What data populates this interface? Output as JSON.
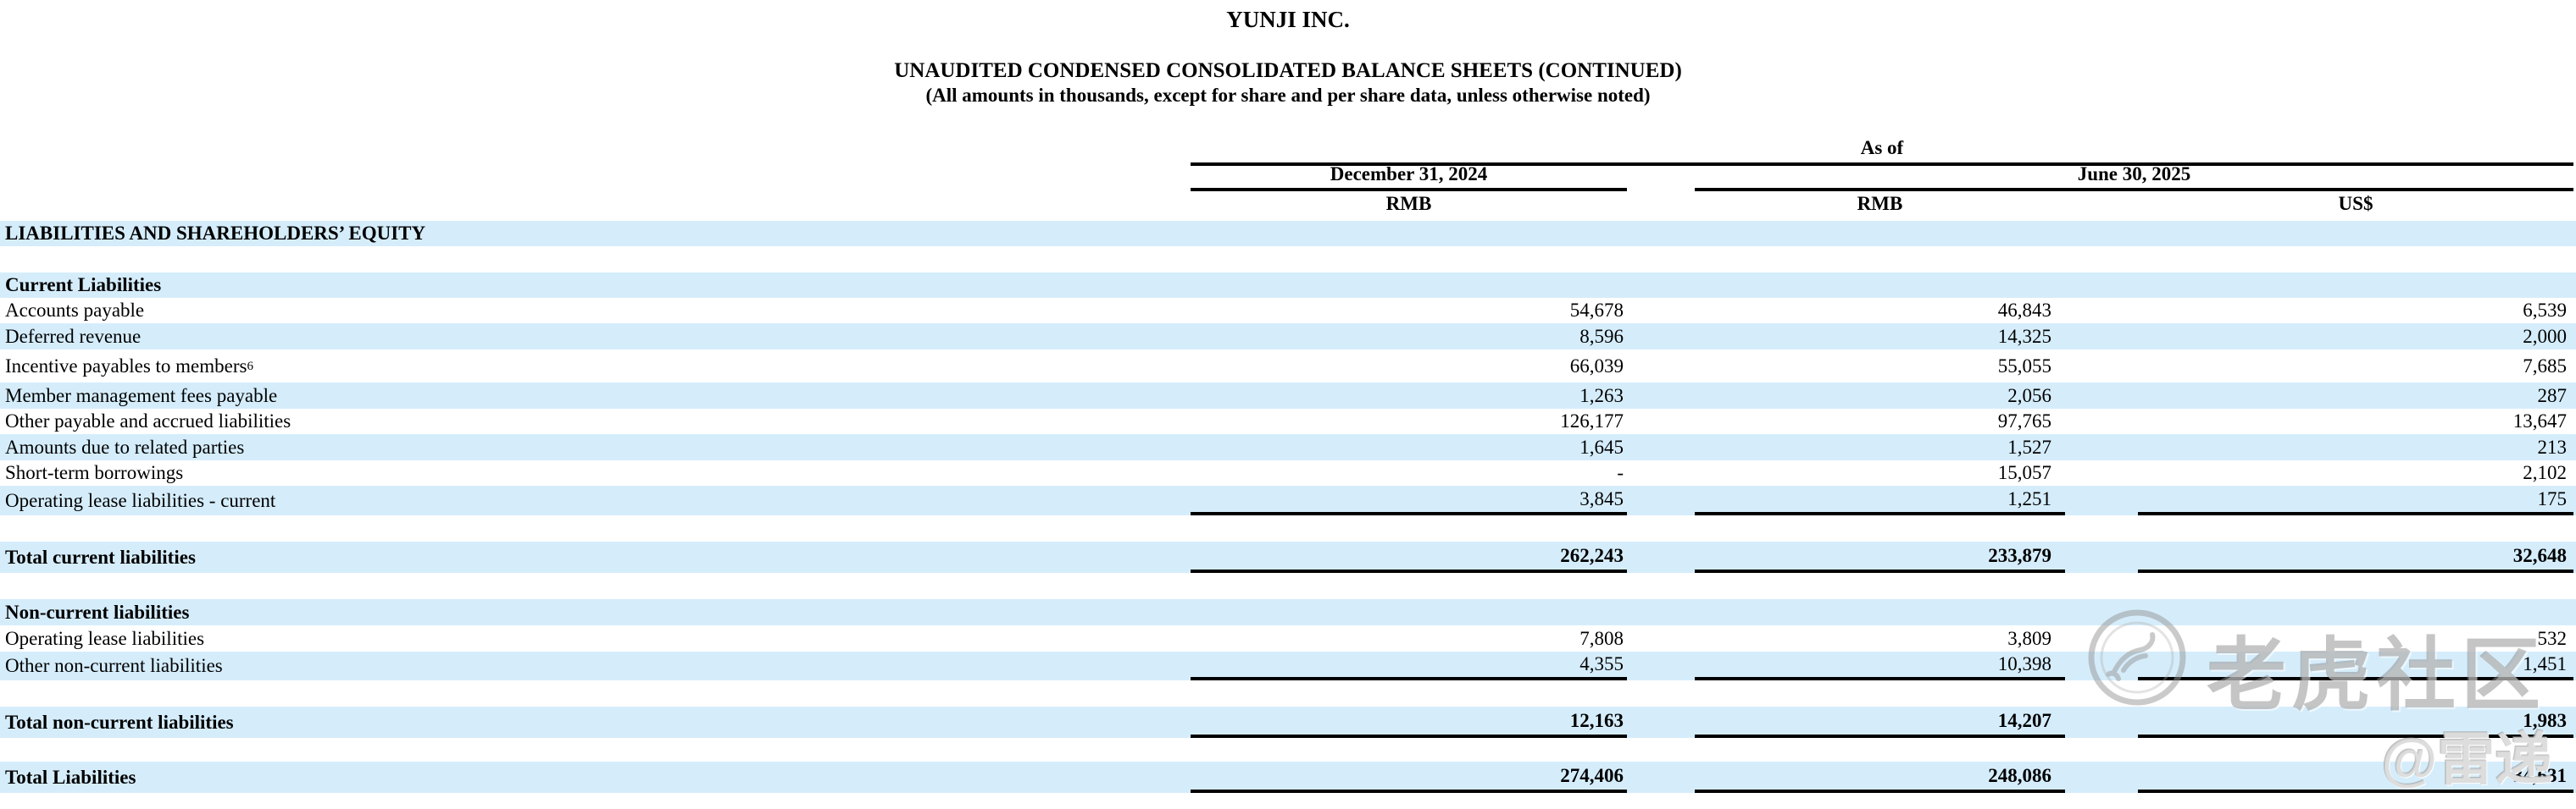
{
  "header": {
    "company": "YUNJI INC.",
    "title": "UNAUDITED CONDENSED CONSOLIDATED BALANCE SHEETS (CONTINUED)",
    "subtitle": "(All amounts in thousands, except for share and per share data, unless otherwise noted)",
    "as_of_label": "As of",
    "period_1": "December 31, 2024",
    "period_2": "June 30, 2025",
    "currencies": [
      "RMB",
      "RMB",
      "US$"
    ]
  },
  "table": {
    "rows": [
      {
        "kind": "section",
        "label": "LIABILITIES AND SHAREHOLDERS’ EQUITY",
        "shade": true,
        "h": 30
      },
      {
        "kind": "spacer",
        "h": 31
      },
      {
        "kind": "section",
        "label": "Current Liabilities",
        "shade": true,
        "h": 30
      },
      {
        "kind": "item",
        "label": "Accounts payable",
        "values": [
          "54,678",
          "46,843",
          "6,539"
        ],
        "shade": false,
        "h": 30
      },
      {
        "kind": "item",
        "label": "Deferred revenue",
        "values": [
          "8,596",
          "14,325",
          "2,000"
        ],
        "shade": true,
        "h": 31
      },
      {
        "kind": "item",
        "label": "Incentive payables to members",
        "sup": "6",
        "values": [
          "66,039",
          "55,055",
          "7,685"
        ],
        "shade": false,
        "h": 39
      },
      {
        "kind": "item",
        "label": "Member management fees payable",
        "values": [
          "1,263",
          "2,056",
          "287"
        ],
        "shade": true,
        "h": 31
      },
      {
        "kind": "item",
        "label": "Other payable and accrued liabilities",
        "values": [
          "126,177",
          "97,765",
          "13,647"
        ],
        "shade": false,
        "h": 30
      },
      {
        "kind": "item",
        "label": "Amounts due to related parties",
        "values": [
          "1,645",
          "1,527",
          "213"
        ],
        "shade": true,
        "h": 31
      },
      {
        "kind": "item",
        "label": "Short-term borrowings",
        "values": [
          "-",
          "15,057",
          "2,102"
        ],
        "shade": false,
        "h": 30
      },
      {
        "kind": "item",
        "label": "Operating lease liabilities - current",
        "values": [
          "3,845",
          "1,251",
          "175"
        ],
        "shade": true,
        "ruled": true,
        "h": 35
      },
      {
        "kind": "spacer",
        "h": 31
      },
      {
        "kind": "total",
        "label": "Total current liabilities",
        "values": [
          "262,243",
          "233,879",
          "32,648"
        ],
        "shade": true,
        "ruled": true,
        "h": 37
      },
      {
        "kind": "spacer",
        "h": 31
      },
      {
        "kind": "section",
        "label": "Non-current liabilities",
        "shade": true,
        "h": 31
      },
      {
        "kind": "item",
        "label": "Operating lease liabilities",
        "values": [
          "7,808",
          "3,809",
          "532"
        ],
        "shade": false,
        "h": 31
      },
      {
        "kind": "item",
        "label": "Other non-current liabilities",
        "values": [
          "4,355",
          "10,398",
          "1,451"
        ],
        "shade": true,
        "ruled": true,
        "h": 34
      },
      {
        "kind": "spacer",
        "h": 31
      },
      {
        "kind": "total",
        "label": "Total non-current liabilities",
        "values": [
          "12,163",
          "14,207",
          "1,983"
        ],
        "shade": true,
        "ruled": true,
        "h": 37
      },
      {
        "kind": "spacer",
        "h": 28
      },
      {
        "kind": "total",
        "label": "Total Liabilities",
        "values": [
          "274,406",
          "248,086",
          "34,631"
        ],
        "shade": true,
        "ruled": true,
        "h": 37
      }
    ]
  },
  "watermark": {
    "logo_icon": "tiger-circle-logo",
    "brand": "老虎社区",
    "handle": "@雷递"
  },
  "colors": {
    "row_stripe": "#d5edfb",
    "rule": "#000000",
    "watermark_gray": "#8c8c8c"
  }
}
